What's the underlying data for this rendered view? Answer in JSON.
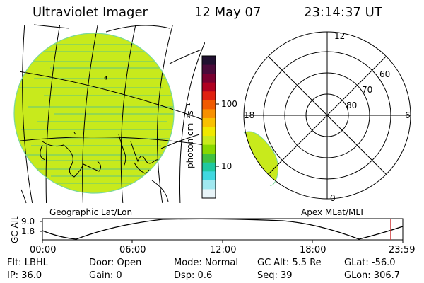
{
  "header": {
    "instrument": "Ultraviolet Imager",
    "date": "12 May 07",
    "time": "23:14:37 UT"
  },
  "geo_map": {
    "caption": "Geographic Lat/Lon",
    "fill_color": "#c8ea1c",
    "ocean_color": "#b5e21a",
    "stripe_color": "#86d35e"
  },
  "polar_plot": {
    "caption": "Apex MLat/MLT",
    "mlt_labels": [
      "12",
      "18",
      "6",
      "0"
    ],
    "mlat_labels": [
      "60",
      "70",
      "80"
    ],
    "fill_color": "#c8ea1c"
  },
  "colorbar": {
    "unit_label": "photon cm⁻²s⁻¹",
    "ticks": [
      "100",
      "10"
    ],
    "colors": [
      "#201030",
      "#4a0a3a",
      "#7a0030",
      "#b00020",
      "#e02010",
      "#f05a00",
      "#f89000",
      "#f8c000",
      "#f0e800",
      "#c8ea1c",
      "#88d800",
      "#40c040",
      "#20c8a0",
      "#40d8e0",
      "#a0e8f0",
      "#e8f4f8"
    ]
  },
  "altitude_timeline": {
    "axis_label": "GC Alt",
    "y_ticks": [
      "9.0",
      "1.8"
    ],
    "x_ticks": [
      "00:00",
      "06:00",
      "12:00",
      "18:00",
      "23:59"
    ],
    "current_time_marker_color": "#cc3333"
  },
  "status": {
    "flt": "Flt: LBHL",
    "ip": "IP: 36.0",
    "door": "Door: Open",
    "gain": "Gain:  0",
    "mode": "Mode: Normal",
    "dsp": "Dsp:    0.6",
    "gc_alt": "GC Alt: 5.5 Re",
    "seq": "Seq: 39",
    "glat": "GLat: -56.0",
    "glon": "GLon: 306.7"
  }
}
